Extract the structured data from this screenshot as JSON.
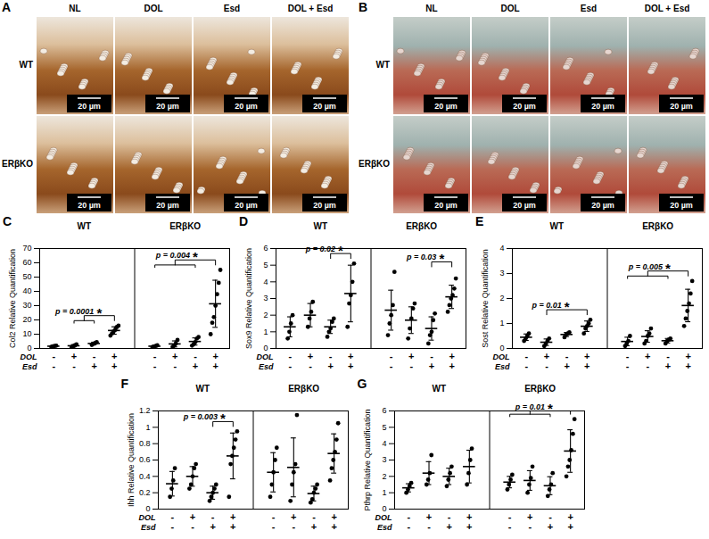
{
  "image_panels": [
    {
      "letter": "A",
      "columns": [
        "NL",
        "DOL",
        "Esd",
        "DOL + Esd"
      ],
      "rows": [
        "WT",
        "ERβKO"
      ],
      "scale_bar": "20 µm"
    },
    {
      "letter": "B",
      "columns": [
        "NL",
        "DOL",
        "Esd",
        "DOL + Esd"
      ],
      "rows": [
        "WT",
        "ERβKO"
      ],
      "scale_bar": "20 µm"
    }
  ],
  "chart_data": [
    {
      "type": "scatter",
      "panel": "C",
      "y_label": "Col2 Relative Quantification",
      "ylim": [
        0,
        70
      ],
      "yticks": [
        0,
        10,
        20,
        30,
        40,
        50,
        60,
        70
      ],
      "factors": [
        {
          "name": "DOL",
          "levels": [
            "-",
            "+",
            "-",
            "+"
          ]
        },
        {
          "name": "Esd",
          "levels": [
            "-",
            "-",
            "+",
            "+"
          ]
        }
      ],
      "groups": [
        {
          "name": "WT",
          "points": [
            [
              1.2,
              1.5,
              1.8,
              2.0
            ],
            [
              1.0,
              1.6,
              2.2,
              2.8
            ],
            [
              2.5,
              3.2,
              3.8,
              4.5
            ],
            [
              9,
              10.5,
              12,
              13,
              15,
              16
            ]
          ],
          "mean": [
            1.6,
            1.9,
            3.5,
            12.6
          ],
          "error": [
            0.4,
            0.8,
            0.9,
            2.6
          ]
        },
        {
          "name": "ERβKO",
          "points": [
            [
              1.0,
              1.3,
              1.8,
              2.2
            ],
            [
              1.2,
              2.0,
              3.5,
              6.0
            ],
            [
              2.0,
              3.0,
              4.5,
              7.0,
              8.0
            ],
            [
              10,
              18,
              22,
              30,
              38,
              46,
              55
            ]
          ],
          "mean": [
            1.6,
            3.2,
            4.9,
            31.3
          ],
          "error": [
            0.5,
            2.1,
            2.5,
            16.5
          ]
        }
      ],
      "annotations": [
        {
          "group": "WT",
          "compare": [
            1,
            2
          ],
          "against": 3,
          "text": "*",
          "p_label": "p = 0.0001"
        },
        {
          "group": "ERβKO",
          "compare": [
            0,
            1,
            2
          ],
          "against": 3,
          "text": "*",
          "p_label": "p = 0.004"
        }
      ]
    },
    {
      "type": "scatter",
      "panel": "D",
      "y_label": "Sox9 Relative Quantification",
      "ylim": [
        0,
        6
      ],
      "yticks": [
        0,
        1,
        2,
        3,
        4,
        5,
        6
      ],
      "factors": [
        {
          "name": "DOL",
          "levels": [
            "-",
            "+",
            "-",
            "+"
          ]
        },
        {
          "name": "Esd",
          "levels": [
            "-",
            "-",
            "+",
            "+"
          ]
        }
      ],
      "groups": [
        {
          "name": "WT",
          "points": [
            [
              0.6,
              1.0,
              1.5,
              2.0
            ],
            [
              1.3,
              1.8,
              2.2,
              2.8
            ],
            [
              0.7,
              1.0,
              1.2,
              1.6,
              1.8
            ],
            [
              1.3,
              2.7,
              3.2,
              4.0,
              5.1
            ]
          ],
          "mean": [
            1.3,
            2.0,
            1.3,
            3.3
          ],
          "error": [
            0.6,
            0.7,
            0.4,
            1.7
          ]
        },
        {
          "name": "ERβKO",
          "points": [
            [
              0.8,
              1.5,
              2.0,
              2.6,
              4.6
            ],
            [
              0.6,
              1.2,
              1.8,
              2.4,
              2.7
            ],
            [
              0.3,
              0.8,
              1.0,
              1.7,
              2.1
            ],
            [
              2.2,
              2.6,
              3.0,
              3.2,
              3.6,
              4.2
            ]
          ],
          "mean": [
            2.3,
            1.7,
            1.2,
            3.1
          ],
          "error": [
            1.2,
            0.8,
            0.7,
            0.7
          ]
        }
      ],
      "annotations": [
        {
          "group": "WT",
          "compare": [
            2
          ],
          "against": 3,
          "text": "*",
          "p_label": "p = 0.02"
        },
        {
          "group": "ERβKO",
          "compare": [
            2
          ],
          "against": 3,
          "text": "*",
          "p_label": "p = 0.03"
        }
      ]
    },
    {
      "type": "scatter",
      "panel": "E",
      "y_label": "Sost Relative Quantification",
      "ylim": [
        0,
        4
      ],
      "yticks": [
        0,
        1,
        2,
        3,
        4
      ],
      "factors": [
        {
          "name": "DOL",
          "levels": [
            "-",
            "+",
            "-",
            "+"
          ]
        },
        {
          "name": "Esd",
          "levels": [
            "-",
            "-",
            "+",
            "+"
          ]
        }
      ],
      "groups": [
        {
          "name": "WT",
          "points": [
            [
              0.3,
              0.4,
              0.5,
              0.6
            ],
            [
              0.1,
              0.2,
              0.3,
              0.4
            ],
            [
              0.45,
              0.55,
              0.6,
              0.65
            ],
            [
              0.6,
              0.8,
              0.9,
              1.0,
              1.15
            ]
          ],
          "mean": [
            0.45,
            0.25,
            0.56,
            0.89
          ],
          "error": [
            0.13,
            0.13,
            0.08,
            0.21
          ]
        },
        {
          "name": "ERβKO",
          "points": [
            [
              0.1,
              0.2,
              0.3,
              0.5
            ],
            [
              0.2,
              0.3,
              0.5,
              0.6,
              0.8
            ],
            [
              0.2,
              0.3,
              0.35,
              0.4
            ],
            [
              0.9,
              1.2,
              1.5,
              1.8,
              2.2,
              2.7
            ]
          ],
          "mean": [
            0.28,
            0.48,
            0.31,
            1.72
          ],
          "error": [
            0.17,
            0.23,
            0.09,
            0.65
          ]
        }
      ],
      "annotations": [
        {
          "group": "WT",
          "compare": [
            1
          ],
          "against": 3,
          "text": "*",
          "p_label": "p = 0.01"
        },
        {
          "group": "ERβKO",
          "compare": [
            0,
            1,
            2
          ],
          "against": 3,
          "text": "*",
          "p_label": "p = 0.005"
        }
      ]
    },
    {
      "type": "scatter",
      "panel": "F",
      "y_label": "Ihh Relative Quantification",
      "ylim": [
        0,
        1.2
      ],
      "yticks": [
        0,
        0.2,
        0.4,
        0.6,
        0.8,
        1,
        1.2
      ],
      "factors": [
        {
          "name": "DOL",
          "levels": [
            "-",
            "+",
            "-",
            "+"
          ]
        },
        {
          "name": "Esd",
          "levels": [
            "-",
            "-",
            "+",
            "+"
          ]
        }
      ],
      "groups": [
        {
          "name": "WT",
          "points": [
            [
              0.15,
              0.25,
              0.35,
              0.5
            ],
            [
              0.25,
              0.3,
              0.4,
              0.5,
              0.55
            ],
            [
              0.1,
              0.15,
              0.2,
              0.25,
              0.3
            ],
            [
              0.15,
              0.55,
              0.65,
              0.75,
              0.85,
              0.95
            ]
          ],
          "mean": [
            0.31,
            0.4,
            0.2,
            0.65
          ],
          "error": [
            0.15,
            0.12,
            0.08,
            0.28
          ]
        },
        {
          "name": "ERβKO",
          "points": [
            [
              0.15,
              0.3,
              0.45,
              0.6,
              0.75
            ],
            [
              0.1,
              0.3,
              0.45,
              0.55,
              1.15
            ],
            [
              0.08,
              0.12,
              0.2,
              0.25,
              0.3
            ],
            [
              0.35,
              0.5,
              0.6,
              0.7,
              0.85,
              1.05
            ]
          ],
          "mean": [
            0.45,
            0.51,
            0.19,
            0.68
          ],
          "error": [
            0.24,
            0.36,
            0.09,
            0.24
          ]
        }
      ],
      "annotations": [
        {
          "group": "WT",
          "compare": [
            2
          ],
          "against": 3,
          "text": "*",
          "p_label": "p = 0.003"
        }
      ]
    },
    {
      "type": "scatter",
      "panel": "G",
      "y_label": "Pthrp Relative Quantification",
      "ylim": [
        0,
        6
      ],
      "yticks": [
        0,
        1,
        2,
        3,
        4,
        5,
        6
      ],
      "factors": [
        {
          "name": "DOL",
          "levels": [
            "-",
            "+",
            "-",
            "+"
          ]
        },
        {
          "name": "Esd",
          "levels": [
            "-",
            "-",
            "+",
            "+"
          ]
        }
      ],
      "groups": [
        {
          "name": "WT",
          "points": [
            [
              1.0,
              1.2,
              1.4,
              1.6
            ],
            [
              1.5,
              1.8,
              2.2,
              3.3
            ],
            [
              1.4,
              1.8,
              2.2,
              2.6
            ],
            [
              1.5,
              2.2,
              3.0,
              3.7
            ]
          ],
          "mean": [
            1.3,
            2.2,
            2.0,
            2.6
          ],
          "error": [
            0.25,
            0.7,
            0.5,
            1.0
          ]
        },
        {
          "name": "ERβKO",
          "points": [
            [
              1.2,
              1.5,
              1.8,
              2.1
            ],
            [
              1.0,
              1.5,
              1.9,
              2.6
            ],
            [
              0.8,
              1.2,
              1.5,
              2.2
            ],
            [
              2.0,
              2.6,
              3.0,
              3.6,
              4.6,
              5.5
            ]
          ],
          "mean": [
            1.65,
            1.75,
            1.43,
            3.55
          ],
          "error": [
            0.35,
            0.6,
            0.55,
            1.3
          ]
        }
      ],
      "annotations": [
        {
          "group": "ERβKO",
          "compare": [
            0,
            1,
            2
          ],
          "against": 3,
          "text": "*",
          "p_label": "p = 0.01"
        }
      ]
    }
  ]
}
